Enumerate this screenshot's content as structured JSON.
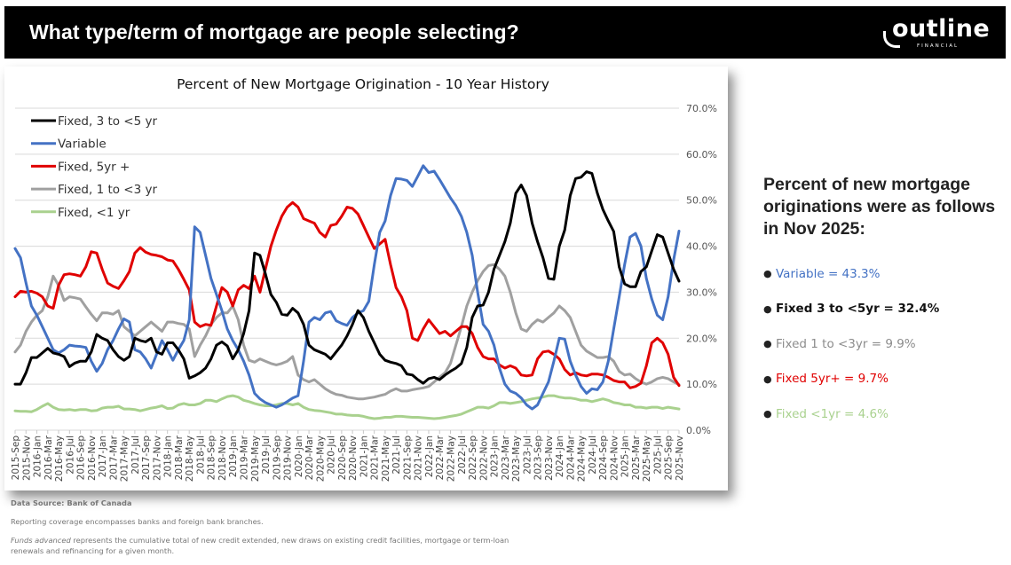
{
  "header": {
    "title": "What type/term of mortgage are people selecting?",
    "logo_text": "outline",
    "logo_subtext": "FINANCIAL"
  },
  "summary": {
    "heading": "Percent of new mortgage originations were as follows in Nov 2025:",
    "items": [
      {
        "label": "Variable = 43.3%",
        "color": "#4472C4",
        "bold": false
      },
      {
        "label": "Fixed 3 to <5yr = 32.4%",
        "color": "#111111",
        "bold": true
      },
      {
        "label": "Fixed 1 to <3yr = 9.9%",
        "color": "#8C8C8C",
        "bold": false
      },
      {
        "label": "Fixed 5yr+ = 9.7%",
        "color": "#E00000",
        "bold": false
      },
      {
        "label": "Fixed <1yr = 4.6%",
        "color": "#A9D18E",
        "bold": false
      }
    ]
  },
  "footer": {
    "source": "Data Source: Bank of Canada",
    "note": "Reporting coverage encompasses banks and foreign bank branches.",
    "definition_term": "Funds advanced",
    "definition_text": " represents the cumulative total of new credit extended, new draws on existing credit facilities, mortgage or term-loan renewals and refinancing for a given month."
  },
  "chart_data": {
    "type": "line",
    "title": "Percent of New Mortgage Origination - 10 Year History",
    "xlabel": "",
    "ylabel": "",
    "ylim": [
      0,
      70
    ],
    "y_ticks": [
      "0.0%",
      "10.0%",
      "20.0%",
      "30.0%",
      "40.0%",
      "50.0%",
      "60.0%",
      "70.0%"
    ],
    "y_axis_side": "right",
    "grid": true,
    "legend_placement": "top-left",
    "x_start": "2015-Sep",
    "x_end": "2025-Nov",
    "x_frequency": "monthly",
    "x_tick_labels": [
      "2015-Sep",
      "2015-Nov",
      "2016-Jan",
      "2016-Mar",
      "2016-May",
      "2016-Jul",
      "2016-Sep",
      "2016-Nov",
      "2017-Jan",
      "2017-Mar",
      "2017-May",
      "2017-Jul",
      "2017-Sep",
      "2017-Nov",
      "2018-Jan",
      "2018-Mar",
      "2018-May",
      "2018-Jul",
      "2018-Sep",
      "2018-Nov",
      "2019-Jan",
      "2019-Mar",
      "2019-May",
      "2019-Jul",
      "2019-Sep",
      "2019-Nov",
      "2020-Jan",
      "2020-Mar",
      "2020-May",
      "2020-Jul",
      "2020-Sep",
      "2020-Nov",
      "2021-Jan",
      "2021-Mar",
      "2021-May",
      "2021-Jul",
      "2021-Sep",
      "2021-Nov",
      "2022-Jan",
      "2022-Mar",
      "2022-May",
      "2022-Jul",
      "2022-Sep",
      "2022-Nov",
      "2023-Jan",
      "2023-Mar",
      "2023-May",
      "2023-Jul",
      "2023-Sep",
      "2023-Nov",
      "2024-Jan",
      "2024-Mar",
      "2024-May",
      "2024-Jul",
      "2024-Sep",
      "2024-Nov",
      "2025-Jan",
      "2025-Mar",
      "2025-May",
      "2025-Jul",
      "2025-Sep",
      "2025-Nov"
    ],
    "series": [
      {
        "name": "Fixed, 3 to <5 yr",
        "color": "#000000",
        "values": [
          10,
          10,
          12.5,
          15.8,
          15.8,
          16.8,
          17.8,
          16.8,
          16.5,
          16,
          13.8,
          14.6,
          15,
          15,
          17,
          20.8,
          20,
          19.5,
          17.5,
          16,
          15.2,
          16,
          20,
          19.5,
          19.2,
          20,
          17,
          16.5,
          19,
          19,
          17.5,
          15.5,
          11.3,
          11.8,
          12.5,
          13.5,
          15.5,
          18.5,
          19.2,
          18.3,
          15.5,
          17.5,
          21,
          26,
          38.5,
          38,
          34,
          29.5,
          27.8,
          25.2,
          25,
          26.5,
          25.5,
          23,
          18.5,
          17.5,
          17,
          16.5,
          15.5,
          17,
          18.5,
          20.5,
          23,
          26,
          24.5,
          21.5,
          19,
          16.5,
          15.2,
          14.8,
          14.5,
          14,
          12.2,
          12,
          11,
          10.2,
          11.2,
          11.5,
          11,
          12,
          12.8,
          13.5,
          14.5,
          18,
          24.5,
          27,
          27.2,
          30,
          35,
          38,
          41,
          45,
          51.5,
          53.3,
          51,
          45,
          41,
          37.5,
          33,
          32.8,
          40,
          43.5,
          51,
          54.7,
          55,
          56.2,
          55.8,
          51.5,
          48,
          45.5,
          43.2,
          35.5,
          31.8,
          31.2,
          31.2,
          34.5,
          35.5,
          39,
          42.5,
          42,
          38.5,
          35,
          32.4
        ]
      },
      {
        "name": "Variable",
        "color": "#4472C4",
        "values": [
          39.5,
          37.5,
          32,
          27,
          25,
          22.5,
          20,
          17.5,
          16.8,
          17.5,
          18.5,
          18.3,
          18.2,
          18,
          15,
          12.8,
          14.5,
          17.5,
          19.5,
          22,
          24.2,
          23.5,
          17.5,
          17,
          15.5,
          13.5,
          16.5,
          19.5,
          17.5,
          15.2,
          17.5,
          19.5,
          24,
          44.2,
          43,
          38,
          33,
          29.5,
          26,
          22,
          19.5,
          17.5,
          15,
          12,
          8,
          6.8,
          6,
          5.5,
          5,
          5.5,
          6.2,
          7,
          7.5,
          15,
          23.5,
          24.5,
          24,
          25.5,
          25.8,
          23.8,
          23.2,
          22.8,
          24.5,
          25.5,
          26,
          28,
          36,
          43,
          45.5,
          51,
          54.7,
          54.6,
          54.3,
          53,
          55.2,
          57.5,
          56,
          56.3,
          54.5,
          52.5,
          50.5,
          48.8,
          46.5,
          43,
          38,
          30,
          23,
          21.5,
          18.5,
          13.5,
          10,
          8.5,
          8,
          7,
          5.5,
          4.6,
          5.5,
          8,
          10.5,
          15,
          20,
          19.8,
          15,
          12,
          9.5,
          8,
          9,
          8.8,
          10.5,
          15,
          22,
          29,
          36,
          42,
          42.8,
          40,
          33,
          28.5,
          25,
          24,
          29,
          37,
          43.3
        ]
      },
      {
        "name": "Fixed, 5yr +",
        "color": "#E00000",
        "values": [
          29,
          30.2,
          30,
          30.2,
          29.8,
          29,
          27,
          26.5,
          31.5,
          33.8,
          34,
          33.8,
          33.5,
          35.5,
          38.8,
          38.5,
          35,
          32,
          31.3,
          30.8,
          32.5,
          34.5,
          38.5,
          39.7,
          38.7,
          38.2,
          38,
          37.7,
          37,
          36.8,
          35,
          32.8,
          30.5,
          23.5,
          22.5,
          23,
          22.8,
          27,
          31,
          30,
          27,
          30.5,
          31.5,
          30.8,
          33.5,
          30,
          35,
          40,
          43.5,
          46.5,
          48.5,
          49.5,
          48.5,
          46,
          45.5,
          45,
          43,
          42,
          44.5,
          44.8,
          46.5,
          48.5,
          48.2,
          47,
          44.5,
          42,
          39.5,
          40.5,
          41.5,
          36,
          31,
          29,
          26,
          20,
          19.5,
          22,
          24,
          22.5,
          21,
          21.5,
          20.5,
          21.5,
          22.5,
          22.5,
          21,
          18,
          16,
          15.5,
          15.5,
          14.2,
          13.5,
          14,
          13.5,
          12,
          11.8,
          12,
          15.5,
          17,
          17.2,
          16.5,
          15.5,
          13.2,
          12,
          12.5,
          12,
          11.8,
          12.2,
          12.2,
          12,
          11.5,
          10.8,
          10.5,
          10.5,
          9.2,
          9.5,
          10.2,
          14,
          19,
          20,
          19,
          16.5,
          11.5,
          9.7
        ]
      },
      {
        "name": "Fixed, 1 to <3 yr",
        "color": "#A0A0A0",
        "values": [
          17,
          18.5,
          21.5,
          23.5,
          25,
          26,
          29,
          33.5,
          31.5,
          28.2,
          29,
          28.8,
          28.5,
          26.8,
          25.2,
          23.8,
          25.5,
          25.5,
          25.2,
          26,
          22.5,
          21.5,
          20.5,
          21.5,
          22.5,
          23.5,
          22.5,
          21.5,
          23.5,
          23.5,
          23.2,
          23,
          22,
          16,
          18.5,
          20.5,
          23,
          24.5,
          25.5,
          25.5,
          27,
          24,
          18.5,
          15.2,
          14.8,
          15.5,
          15,
          14.5,
          14.2,
          14.5,
          15,
          16,
          12,
          11,
          10.5,
          11,
          10,
          9,
          8.3,
          7.8,
          7.6,
          7.2,
          7,
          6.8,
          6.8,
          7,
          7.2,
          7.5,
          7.8,
          8.5,
          9,
          8.5,
          8.5,
          8.8,
          9,
          9.2,
          9.5,
          10.5,
          11.5,
          12.5,
          14.5,
          18.5,
          22.5,
          27,
          30,
          32.5,
          34.5,
          35.8,
          36,
          35,
          33.5,
          30,
          25.5,
          22,
          21.5,
          23,
          24,
          23.5,
          24.5,
          25.5,
          27,
          26,
          24.5,
          21.5,
          18.5,
          17.2,
          16.5,
          15.8,
          15.8,
          16,
          15,
          12.8,
          12,
          12.2,
          11.2,
          10.5,
          10,
          10.5,
          11.2,
          11.5,
          11.2,
          10.5,
          9.9
        ]
      },
      {
        "name": "Fixed, <1 yr",
        "color": "#A9D18E",
        "values": [
          4.2,
          4.1,
          4.1,
          4,
          4.5,
          5.2,
          5.8,
          5,
          4.5,
          4.4,
          4.5,
          4.3,
          4.5,
          4.5,
          4.2,
          4.3,
          4.8,
          5,
          5,
          5.2,
          4.6,
          4.6,
          4.5,
          4.2,
          4.5,
          4.8,
          5,
          5.3,
          4.7,
          4.8,
          5.5,
          5.8,
          5.5,
          5.5,
          5.8,
          6.5,
          6.5,
          6.2,
          6.8,
          7.3,
          7.5,
          7.2,
          6.5,
          6.2,
          5.8,
          5.5,
          5.3,
          5.3,
          5.5,
          5.8,
          5.8,
          5.5,
          5.8,
          5,
          4.5,
          4.3,
          4.2,
          4,
          3.8,
          3.5,
          3.5,
          3.3,
          3.2,
          3.2,
          3,
          2.7,
          2.5,
          2.6,
          2.8,
          2.8,
          3,
          3,
          2.9,
          2.8,
          2.8,
          2.7,
          2.6,
          2.5,
          2.6,
          2.8,
          3,
          3.2,
          3.5,
          4,
          4.5,
          5,
          5,
          4.8,
          5.3,
          6,
          6,
          5.8,
          6,
          6.2,
          6.5,
          6.8,
          7,
          7.2,
          7.5,
          7.5,
          7.2,
          7,
          7,
          6.8,
          6.5,
          6.5,
          6.2,
          6.5,
          6.8,
          6.5,
          6,
          5.8,
          5.5,
          5.5,
          5,
          5,
          4.8,
          5,
          5,
          4.7,
          5,
          4.8,
          4.6
        ]
      }
    ]
  }
}
